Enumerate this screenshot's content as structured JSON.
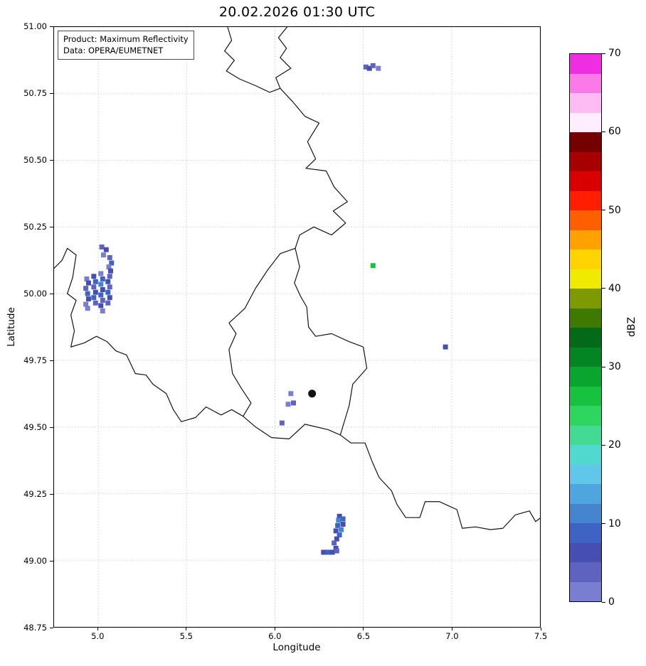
{
  "title": "20.02.2026 01:30 UTC",
  "annotation": {
    "line1": "Product: Maximum Reflectivity",
    "line2": "Data: OPERA/EUMETNET"
  },
  "axes": {
    "xlabel": "Longitude",
    "ylabel": "Latitude",
    "xlim": [
      4.75,
      7.5
    ],
    "ylim": [
      48.75,
      51.0
    ],
    "xticks": [
      5.0,
      5.5,
      6.0,
      6.5,
      7.0,
      7.5
    ],
    "yticks": [
      48.75,
      49.0,
      49.25,
      49.5,
      49.75,
      50.0,
      50.25,
      50.5,
      50.75,
      51.0
    ],
    "grid": "dotted"
  },
  "colorbar": {
    "label": "dBZ",
    "min": 0,
    "max": 70,
    "ticks": [
      0,
      10,
      20,
      30,
      40,
      50,
      60,
      70
    ],
    "colors": [
      "#7a7ed1",
      "#5f63c0",
      "#474eb2",
      "#3f63c4",
      "#4585d0",
      "#4fa6de",
      "#60c6ea",
      "#51d9d0",
      "#43db93",
      "#2ed55e",
      "#17c23f",
      "#0aa52f",
      "#058423",
      "#026a19",
      "#3f7a00",
      "#7f9a00",
      "#f0ea00",
      "#ffd400",
      "#ffa200",
      "#ff5f00",
      "#ff1e00",
      "#d80000",
      "#a80000",
      "#740000",
      "#ffeeff",
      "#ffbcf2",
      "#fb7ae8",
      "#ee2ee0"
    ]
  },
  "chart_data": {
    "type": "heatmap",
    "title": "20.02.2026 01:30 UTC",
    "product": "Maximum Reflectivity",
    "source": "OPERA/EUMETNET",
    "xlabel": "Longitude",
    "ylabel": "Latitude",
    "xlim": [
      4.75,
      7.5
    ],
    "ylim": [
      48.75,
      51.0
    ],
    "units": "dBZ",
    "station_marker": {
      "lon": 6.21,
      "lat": 49.625
    },
    "echoes": [
      {
        "lon": 5.02,
        "lat": 50.175,
        "dbz": 4
      },
      {
        "lon": 5.045,
        "lat": 50.165,
        "dbz": 6
      },
      {
        "lon": 5.03,
        "lat": 50.145,
        "dbz": 1
      },
      {
        "lon": 5.065,
        "lat": 50.135,
        "dbz": 4
      },
      {
        "lon": 5.075,
        "lat": 50.115,
        "dbz": 8
      },
      {
        "lon": 5.06,
        "lat": 50.1,
        "dbz": 1
      },
      {
        "lon": 5.07,
        "lat": 50.085,
        "dbz": 6
      },
      {
        "lon": 5.065,
        "lat": 50.065,
        "dbz": 4
      },
      {
        "lon": 4.935,
        "lat": 50.055,
        "dbz": 1
      },
      {
        "lon": 4.945,
        "lat": 50.04,
        "dbz": 6
      },
      {
        "lon": 4.93,
        "lat": 50.02,
        "dbz": 4
      },
      {
        "lon": 4.94,
        "lat": 50.0,
        "dbz": 8
      },
      {
        "lon": 4.945,
        "lat": 49.98,
        "dbz": 6
      },
      {
        "lon": 4.93,
        "lat": 49.96,
        "dbz": 1
      },
      {
        "lon": 4.94,
        "lat": 49.945,
        "dbz": 1
      },
      {
        "lon": 4.975,
        "lat": 50.065,
        "dbz": 6
      },
      {
        "lon": 4.985,
        "lat": 50.045,
        "dbz": 8
      },
      {
        "lon": 4.975,
        "lat": 50.025,
        "dbz": 4
      },
      {
        "lon": 4.985,
        "lat": 50.005,
        "dbz": 6
      },
      {
        "lon": 4.975,
        "lat": 49.985,
        "dbz": 8
      },
      {
        "lon": 4.985,
        "lat": 49.965,
        "dbz": 4
      },
      {
        "lon": 5.015,
        "lat": 50.075,
        "dbz": 1
      },
      {
        "lon": 5.025,
        "lat": 50.055,
        "dbz": 8
      },
      {
        "lon": 5.015,
        "lat": 50.035,
        "dbz": 11
      },
      {
        "lon": 5.025,
        "lat": 50.015,
        "dbz": 6
      },
      {
        "lon": 5.015,
        "lat": 49.995,
        "dbz": 8
      },
      {
        "lon": 5.025,
        "lat": 49.975,
        "dbz": 4
      },
      {
        "lon": 5.015,
        "lat": 49.955,
        "dbz": 6
      },
      {
        "lon": 5.025,
        "lat": 49.935,
        "dbz": 1
      },
      {
        "lon": 5.055,
        "lat": 50.045,
        "dbz": 6
      },
      {
        "lon": 5.065,
        "lat": 50.025,
        "dbz": 4
      },
      {
        "lon": 5.055,
        "lat": 50.005,
        "dbz": 8
      },
      {
        "lon": 5.065,
        "lat": 49.985,
        "dbz": 6
      },
      {
        "lon": 5.055,
        "lat": 49.965,
        "dbz": 4
      },
      {
        "lon": 6.515,
        "lat": 50.85,
        "dbz": 4
      },
      {
        "lon": 6.535,
        "lat": 50.845,
        "dbz": 6
      },
      {
        "lon": 6.555,
        "lat": 50.855,
        "dbz": 4
      },
      {
        "lon": 6.585,
        "lat": 50.845,
        "dbz": 1
      },
      {
        "lon": 6.555,
        "lat": 50.105,
        "dbz": 25
      },
      {
        "lon": 6.965,
        "lat": 49.8,
        "dbz": 6
      },
      {
        "lon": 6.09,
        "lat": 49.625,
        "dbz": 1
      },
      {
        "lon": 6.105,
        "lat": 49.59,
        "dbz": 4
      },
      {
        "lon": 6.075,
        "lat": 49.585,
        "dbz": 1
      },
      {
        "lon": 6.04,
        "lat": 49.515,
        "dbz": 4
      },
      {
        "lon": 6.365,
        "lat": 49.165,
        "dbz": 6
      },
      {
        "lon": 6.385,
        "lat": 49.155,
        "dbz": 8
      },
      {
        "lon": 6.36,
        "lat": 49.15,
        "dbz": 11
      },
      {
        "lon": 6.385,
        "lat": 49.135,
        "dbz": 6
      },
      {
        "lon": 6.355,
        "lat": 49.13,
        "dbz": 8
      },
      {
        "lon": 6.375,
        "lat": 49.115,
        "dbz": 11
      },
      {
        "lon": 6.345,
        "lat": 49.11,
        "dbz": 6
      },
      {
        "lon": 6.365,
        "lat": 49.095,
        "dbz": 8
      },
      {
        "lon": 6.35,
        "lat": 49.08,
        "dbz": 6
      },
      {
        "lon": 6.335,
        "lat": 49.065,
        "dbz": 4
      },
      {
        "lon": 6.345,
        "lat": 49.045,
        "dbz": 6
      },
      {
        "lon": 6.275,
        "lat": 49.03,
        "dbz": 6
      },
      {
        "lon": 6.3,
        "lat": 49.03,
        "dbz": 8
      },
      {
        "lon": 6.325,
        "lat": 49.03,
        "dbz": 6
      },
      {
        "lon": 6.35,
        "lat": 49.035,
        "dbz": 4
      }
    ],
    "borders": [
      [
        [
          5.73,
          51.005
        ],
        [
          5.755,
          50.95
        ],
        [
          5.715,
          50.91
        ],
        [
          5.77,
          50.875
        ],
        [
          5.725,
          50.835
        ],
        [
          5.8,
          50.805
        ],
        [
          5.89,
          50.78
        ],
        [
          5.97,
          50.755
        ],
        [
          6.03,
          50.77
        ],
        [
          6.005,
          50.81
        ],
        [
          6.09,
          50.845
        ],
        [
          6.03,
          50.885
        ],
        [
          6.065,
          50.92
        ],
        [
          6.02,
          50.96
        ],
        [
          6.075,
          51.005
        ]
      ],
      [
        [
          6.03,
          50.77
        ],
        [
          6.1,
          50.72
        ],
        [
          6.17,
          50.665
        ],
        [
          6.25,
          50.64
        ],
        [
          6.185,
          50.57
        ],
        [
          6.23,
          50.505
        ],
        [
          6.175,
          50.47
        ],
        [
          6.29,
          50.46
        ],
        [
          6.335,
          50.4
        ],
        [
          6.41,
          50.345
        ],
        [
          6.33,
          50.31
        ],
        [
          6.4,
          50.265
        ],
        [
          6.32,
          50.22
        ],
        [
          6.22,
          50.25
        ],
        [
          6.14,
          50.22
        ],
        [
          6.115,
          50.17
        ]
      ],
      [
        [
          6.115,
          50.17
        ],
        [
          6.14,
          50.1
        ],
        [
          6.11,
          50.04
        ],
        [
          6.145,
          49.99
        ],
        [
          6.18,
          49.95
        ],
        [
          6.19,
          49.875
        ],
        [
          6.23,
          49.84
        ],
        [
          6.32,
          49.85
        ],
        [
          6.42,
          49.82
        ],
        [
          6.5,
          49.8
        ],
        [
          6.52,
          49.72
        ],
        [
          6.44,
          49.66
        ],
        [
          6.42,
          49.58
        ],
        [
          6.37,
          49.47
        ],
        [
          6.3,
          49.49
        ],
        [
          6.17,
          49.51
        ],
        [
          6.08,
          49.455
        ],
        [
          5.98,
          49.46
        ],
        [
          5.89,
          49.5
        ],
        [
          5.82,
          49.54
        ],
        [
          5.865,
          49.59
        ],
        [
          5.81,
          49.645
        ],
        [
          5.76,
          49.7
        ],
        [
          5.74,
          49.79
        ],
        [
          5.78,
          49.85
        ],
        [
          5.74,
          49.89
        ],
        [
          5.83,
          49.945
        ],
        [
          5.89,
          50.02
        ],
        [
          5.96,
          50.09
        ],
        [
          6.03,
          50.15
        ],
        [
          6.115,
          50.17
        ]
      ],
      [
        [
          4.75,
          50.095
        ],
        [
          4.795,
          50.125
        ],
        [
          4.825,
          50.17
        ],
        [
          4.875,
          50.145
        ],
        [
          4.855,
          50.06
        ],
        [
          4.825,
          50.0
        ],
        [
          4.875,
          49.975
        ],
        [
          4.845,
          49.92
        ],
        [
          4.865,
          49.86
        ],
        [
          4.845,
          49.8
        ],
        [
          4.92,
          49.815
        ],
        [
          4.99,
          49.84
        ],
        [
          5.05,
          49.82
        ],
        [
          5.1,
          49.785
        ],
        [
          5.16,
          49.77
        ],
        [
          5.21,
          49.7
        ],
        [
          5.27,
          49.695
        ],
        [
          5.31,
          49.66
        ],
        [
          5.385,
          49.625
        ],
        [
          5.425,
          49.565
        ],
        [
          5.47,
          49.52
        ],
        [
          5.55,
          49.535
        ],
        [
          5.61,
          49.575
        ],
        [
          5.695,
          49.545
        ],
        [
          5.755,
          49.565
        ],
        [
          5.82,
          49.54
        ]
      ],
      [
        [
          6.37,
          49.47
        ],
        [
          6.43,
          49.44
        ],
        [
          6.51,
          49.44
        ],
        [
          6.55,
          49.37
        ],
        [
          6.59,
          49.31
        ],
        [
          6.66,
          49.26
        ],
        [
          6.69,
          49.21
        ],
        [
          6.74,
          49.16
        ],
        [
          6.82,
          49.16
        ],
        [
          6.85,
          49.22
        ],
        [
          6.93,
          49.22
        ],
        [
          7.03,
          49.19
        ],
        [
          7.06,
          49.12
        ],
        [
          7.135,
          49.125
        ],
        [
          7.22,
          49.115
        ],
        [
          7.29,
          49.12
        ],
        [
          7.36,
          49.17
        ],
        [
          7.44,
          49.185
        ],
        [
          7.475,
          49.145
        ],
        [
          7.505,
          49.16
        ]
      ]
    ]
  }
}
